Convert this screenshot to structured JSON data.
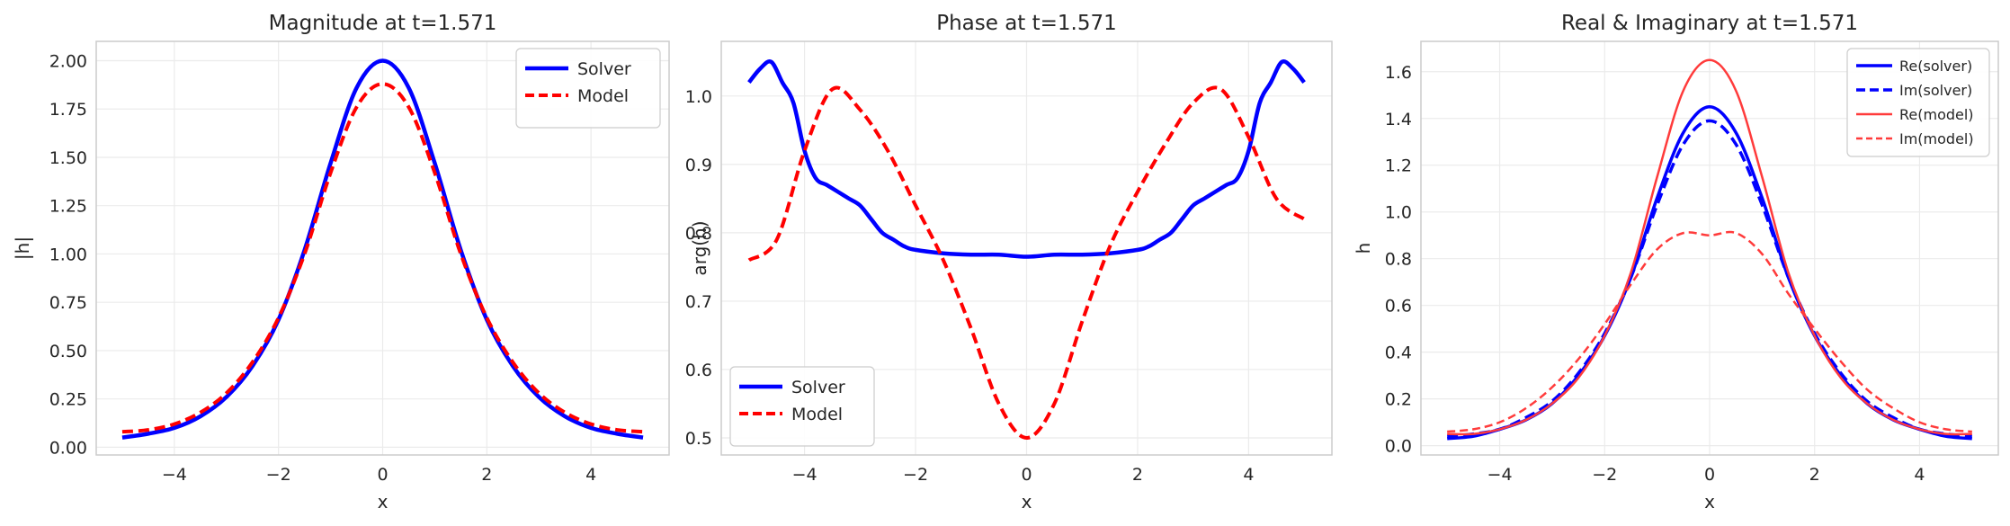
{
  "chart_data": [
    {
      "type": "line",
      "title": "Magnitude at t=1.571",
      "xlabel": "x",
      "ylabel": "|h|",
      "xlim": [
        -5.5,
        5.5
      ],
      "ylim": [
        -0.04,
        2.1
      ],
      "xticks": [
        -4,
        -2,
        0,
        2,
        4
      ],
      "xtick_labels": [
        "−4",
        "−2",
        "0",
        "2",
        "4"
      ],
      "yticks": [
        0.0,
        0.25,
        0.5,
        0.75,
        1.0,
        1.25,
        1.5,
        1.75,
        2.0
      ],
      "ytick_labels": [
        "0.00",
        "0.25",
        "0.50",
        "0.75",
        "1.00",
        "1.25",
        "1.50",
        "1.75",
        "2.00"
      ],
      "grid": true,
      "legend": "top-right",
      "series": [
        {
          "name": "Solver",
          "color": "#0000ff",
          "style": "solid",
          "width": 4.5,
          "x": [
            -5,
            -4.5,
            -4,
            -3.5,
            -3,
            -2.5,
            -2,
            -1.5,
            -1,
            -0.5,
            0,
            0.5,
            1,
            1.5,
            2,
            2.5,
            3,
            3.5,
            4,
            4.5,
            5
          ],
          "y": [
            0.05,
            0.07,
            0.1,
            0.16,
            0.26,
            0.42,
            0.66,
            1.02,
            1.47,
            1.86,
            2.0,
            1.86,
            1.47,
            1.02,
            0.66,
            0.42,
            0.26,
            0.16,
            0.1,
            0.07,
            0.05
          ]
        },
        {
          "name": "Model",
          "color": "#ff0000",
          "style": "dashed",
          "width": 4,
          "x": [
            -5,
            -4.5,
            -4,
            -3.5,
            -3,
            -2.5,
            -2,
            -1.5,
            -1,
            -0.5,
            0,
            0.5,
            1,
            1.5,
            2,
            2.5,
            3,
            3.5,
            4,
            4.5,
            5
          ],
          "y": [
            0.08,
            0.09,
            0.12,
            0.18,
            0.28,
            0.44,
            0.67,
            1.0,
            1.42,
            1.76,
            1.88,
            1.76,
            1.42,
            1.0,
            0.67,
            0.44,
            0.28,
            0.18,
            0.12,
            0.09,
            0.08
          ]
        }
      ]
    },
    {
      "type": "line",
      "title": "Phase at t=1.571",
      "xlabel": "x",
      "ylabel": "arg(h)",
      "xlim": [
        -5.5,
        5.5
      ],
      "ylim": [
        0.475,
        1.08
      ],
      "xticks": [
        -4,
        -2,
        0,
        2,
        4
      ],
      "xtick_labels": [
        "−4",
        "−2",
        "0",
        "2",
        "4"
      ],
      "yticks": [
        0.5,
        0.6,
        0.7,
        0.8,
        0.9,
        1.0
      ],
      "ytick_labels": [
        "0.5",
        "0.6",
        "0.7",
        "0.8",
        "0.9",
        "1.0"
      ],
      "grid": true,
      "legend": "bottom-left",
      "series": [
        {
          "name": "Solver",
          "color": "#0000ff",
          "style": "solid",
          "width": 4.5,
          "x": [
            -5,
            -4.8,
            -4.6,
            -4.4,
            -4.2,
            -4,
            -3.8,
            -3.6,
            -3.4,
            -3.2,
            -3,
            -2.8,
            -2.6,
            -2.4,
            -2.2,
            -2,
            -1.5,
            -1,
            -0.5,
            0,
            0.5,
            1,
            1.5,
            2,
            2.2,
            2.4,
            2.6,
            2.8,
            3,
            3.2,
            3.4,
            3.6,
            3.8,
            4,
            4.2,
            4.4,
            4.6,
            4.8,
            5
          ],
          "y": [
            1.02,
            1.04,
            1.05,
            1.02,
            0.99,
            0.92,
            0.88,
            0.87,
            0.86,
            0.85,
            0.84,
            0.82,
            0.8,
            0.79,
            0.78,
            0.775,
            0.77,
            0.768,
            0.768,
            0.765,
            0.768,
            0.768,
            0.77,
            0.775,
            0.78,
            0.79,
            0.8,
            0.82,
            0.84,
            0.85,
            0.86,
            0.87,
            0.88,
            0.92,
            0.99,
            1.02,
            1.05,
            1.04,
            1.02
          ]
        },
        {
          "name": "Model",
          "color": "#ff0000",
          "style": "dashed",
          "width": 4,
          "x": [
            -5,
            -4.5,
            -4,
            -3.5,
            -3,
            -2.5,
            -2,
            -1.5,
            -1,
            -0.5,
            0,
            0.5,
            1,
            1.5,
            2,
            2.5,
            3,
            3.5,
            4,
            4.5,
            5
          ],
          "y": [
            0.76,
            0.79,
            0.92,
            1.01,
            0.98,
            0.92,
            0.84,
            0.76,
            0.66,
            0.55,
            0.5,
            0.55,
            0.67,
            0.78,
            0.86,
            0.93,
            0.99,
            1.01,
            0.94,
            0.85,
            0.82
          ]
        }
      ]
    },
    {
      "type": "line",
      "title": "Real & Imaginary at t=1.571",
      "xlabel": "x",
      "ylabel": "h",
      "xlim": [
        -5.5,
        5.5
      ],
      "ylim": [
        -0.04,
        1.73
      ],
      "xticks": [
        -4,
        -2,
        0,
        2,
        4
      ],
      "xtick_labels": [
        "−4",
        "−2",
        "0",
        "2",
        "4"
      ],
      "yticks": [
        0.0,
        0.2,
        0.4,
        0.6,
        0.8,
        1.0,
        1.2,
        1.4,
        1.6
      ],
      "ytick_labels": [
        "0.0",
        "0.2",
        "0.4",
        "0.6",
        "0.8",
        "1.0",
        "1.2",
        "1.4",
        "1.6"
      ],
      "grid": true,
      "legend": "top-right",
      "series": [
        {
          "name": "Re(solver)",
          "color": "#0000ff",
          "style": "solid",
          "width": 3.5,
          "x": [
            -5,
            -4.5,
            -4,
            -3.5,
            -3,
            -2.5,
            -2,
            -1.5,
            -1,
            -0.5,
            0,
            0.5,
            1,
            1.5,
            2,
            2.5,
            3,
            3.5,
            4,
            4.5,
            5
          ],
          "y": [
            0.03,
            0.04,
            0.07,
            0.11,
            0.18,
            0.3,
            0.47,
            0.72,
            1.06,
            1.34,
            1.45,
            1.34,
            1.06,
            0.72,
            0.47,
            0.3,
            0.18,
            0.11,
            0.07,
            0.04,
            0.03
          ]
        },
        {
          "name": "Im(solver)",
          "color": "#0000ff",
          "style": "dashed",
          "width": 3.5,
          "x": [
            -5,
            -4.5,
            -4,
            -3.5,
            -3,
            -2.5,
            -2,
            -1.5,
            -1,
            -0.5,
            0,
            0.5,
            1,
            1.5,
            2,
            2.5,
            3,
            3.5,
            4,
            4.5,
            5
          ],
          "y": [
            0.04,
            0.05,
            0.07,
            0.12,
            0.19,
            0.31,
            0.48,
            0.72,
            1.03,
            1.29,
            1.39,
            1.29,
            1.03,
            0.72,
            0.48,
            0.31,
            0.19,
            0.12,
            0.07,
            0.05,
            0.04
          ]
        },
        {
          "name": "Re(model)",
          "color": "#ff3b3b",
          "style": "solid",
          "width": 2.5,
          "x": [
            -5,
            -4.5,
            -4,
            -3.5,
            -3,
            -2.5,
            -2,
            -1.5,
            -1,
            -0.5,
            0,
            0.5,
            1,
            1.5,
            2,
            2.5,
            3,
            3.5,
            4,
            4.5,
            5
          ],
          "y": [
            0.05,
            0.05,
            0.07,
            0.11,
            0.18,
            0.29,
            0.47,
            0.74,
            1.15,
            1.52,
            1.65,
            1.52,
            1.15,
            0.74,
            0.47,
            0.29,
            0.18,
            0.11,
            0.07,
            0.05,
            0.05
          ]
        },
        {
          "name": "Im(model)",
          "color": "#ff3b3b",
          "style": "dashed",
          "width": 2.5,
          "x": [
            -5,
            -4.5,
            -4,
            -3.5,
            -3,
            -2.5,
            -2,
            -1.5,
            -1,
            -0.5,
            0,
            0.5,
            1,
            1.5,
            2,
            2.5,
            3,
            3.5,
            4,
            4.5,
            5
          ],
          "y": [
            0.06,
            0.07,
            0.1,
            0.16,
            0.25,
            0.37,
            0.52,
            0.69,
            0.84,
            0.91,
            0.9,
            0.91,
            0.82,
            0.65,
            0.5,
            0.36,
            0.24,
            0.16,
            0.1,
            0.07,
            0.06
          ]
        }
      ]
    }
  ]
}
